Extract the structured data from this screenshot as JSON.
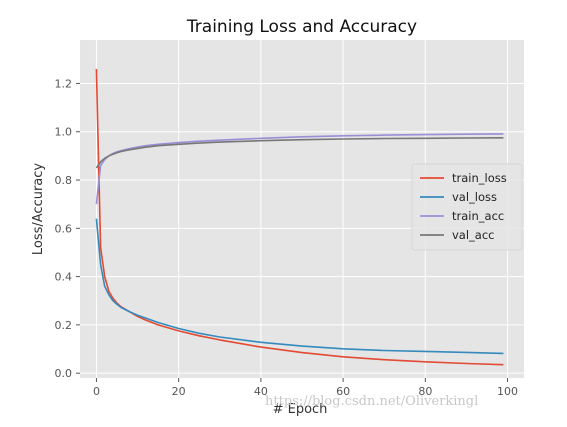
{
  "chart_data": {
    "type": "line",
    "title": "Training Loss and Accuracy",
    "xlabel": "# Epoch",
    "ylabel": "Loss/Accuracy",
    "xlim": [
      -4,
      104
    ],
    "ylim": [
      -0.02,
      1.38
    ],
    "xticks": [
      0,
      20,
      40,
      60,
      80,
      100
    ],
    "yticks": [
      0.0,
      0.2,
      0.4,
      0.6,
      0.8,
      1.0,
      1.2
    ],
    "grid": true,
    "legend_position": "center-right",
    "x": [
      0,
      1,
      2,
      3,
      4,
      5,
      6,
      8,
      10,
      12,
      15,
      20,
      25,
      30,
      40,
      50,
      60,
      70,
      80,
      90,
      99
    ],
    "series": [
      {
        "name": "train_loss",
        "color": "#E24A33",
        "values": [
          1.26,
          0.52,
          0.4,
          0.34,
          0.31,
          0.29,
          0.275,
          0.255,
          0.235,
          0.22,
          0.2,
          0.175,
          0.155,
          0.138,
          0.108,
          0.085,
          0.068,
          0.056,
          0.047,
          0.04,
          0.035
        ]
      },
      {
        "name": "val_loss",
        "color": "#348ABD",
        "values": [
          0.64,
          0.45,
          0.36,
          0.325,
          0.3,
          0.285,
          0.272,
          0.255,
          0.24,
          0.228,
          0.21,
          0.185,
          0.165,
          0.15,
          0.128,
          0.112,
          0.101,
          0.094,
          0.09,
          0.086,
          0.082
        ]
      },
      {
        "name": "train_acc",
        "color": "#988ED5",
        "values": [
          0.7,
          0.86,
          0.885,
          0.9,
          0.91,
          0.917,
          0.922,
          0.93,
          0.937,
          0.942,
          0.948,
          0.955,
          0.961,
          0.965,
          0.973,
          0.979,
          0.983,
          0.986,
          0.988,
          0.99,
          0.991
        ]
      },
      {
        "name": "val_acc",
        "color": "#777777",
        "values": [
          0.85,
          0.875,
          0.89,
          0.9,
          0.907,
          0.913,
          0.918,
          0.925,
          0.931,
          0.936,
          0.942,
          0.948,
          0.953,
          0.957,
          0.963,
          0.967,
          0.97,
          0.972,
          0.973,
          0.974,
          0.975
        ]
      }
    ]
  },
  "watermark": "https://blog.csdn.net/Oliverkingl"
}
